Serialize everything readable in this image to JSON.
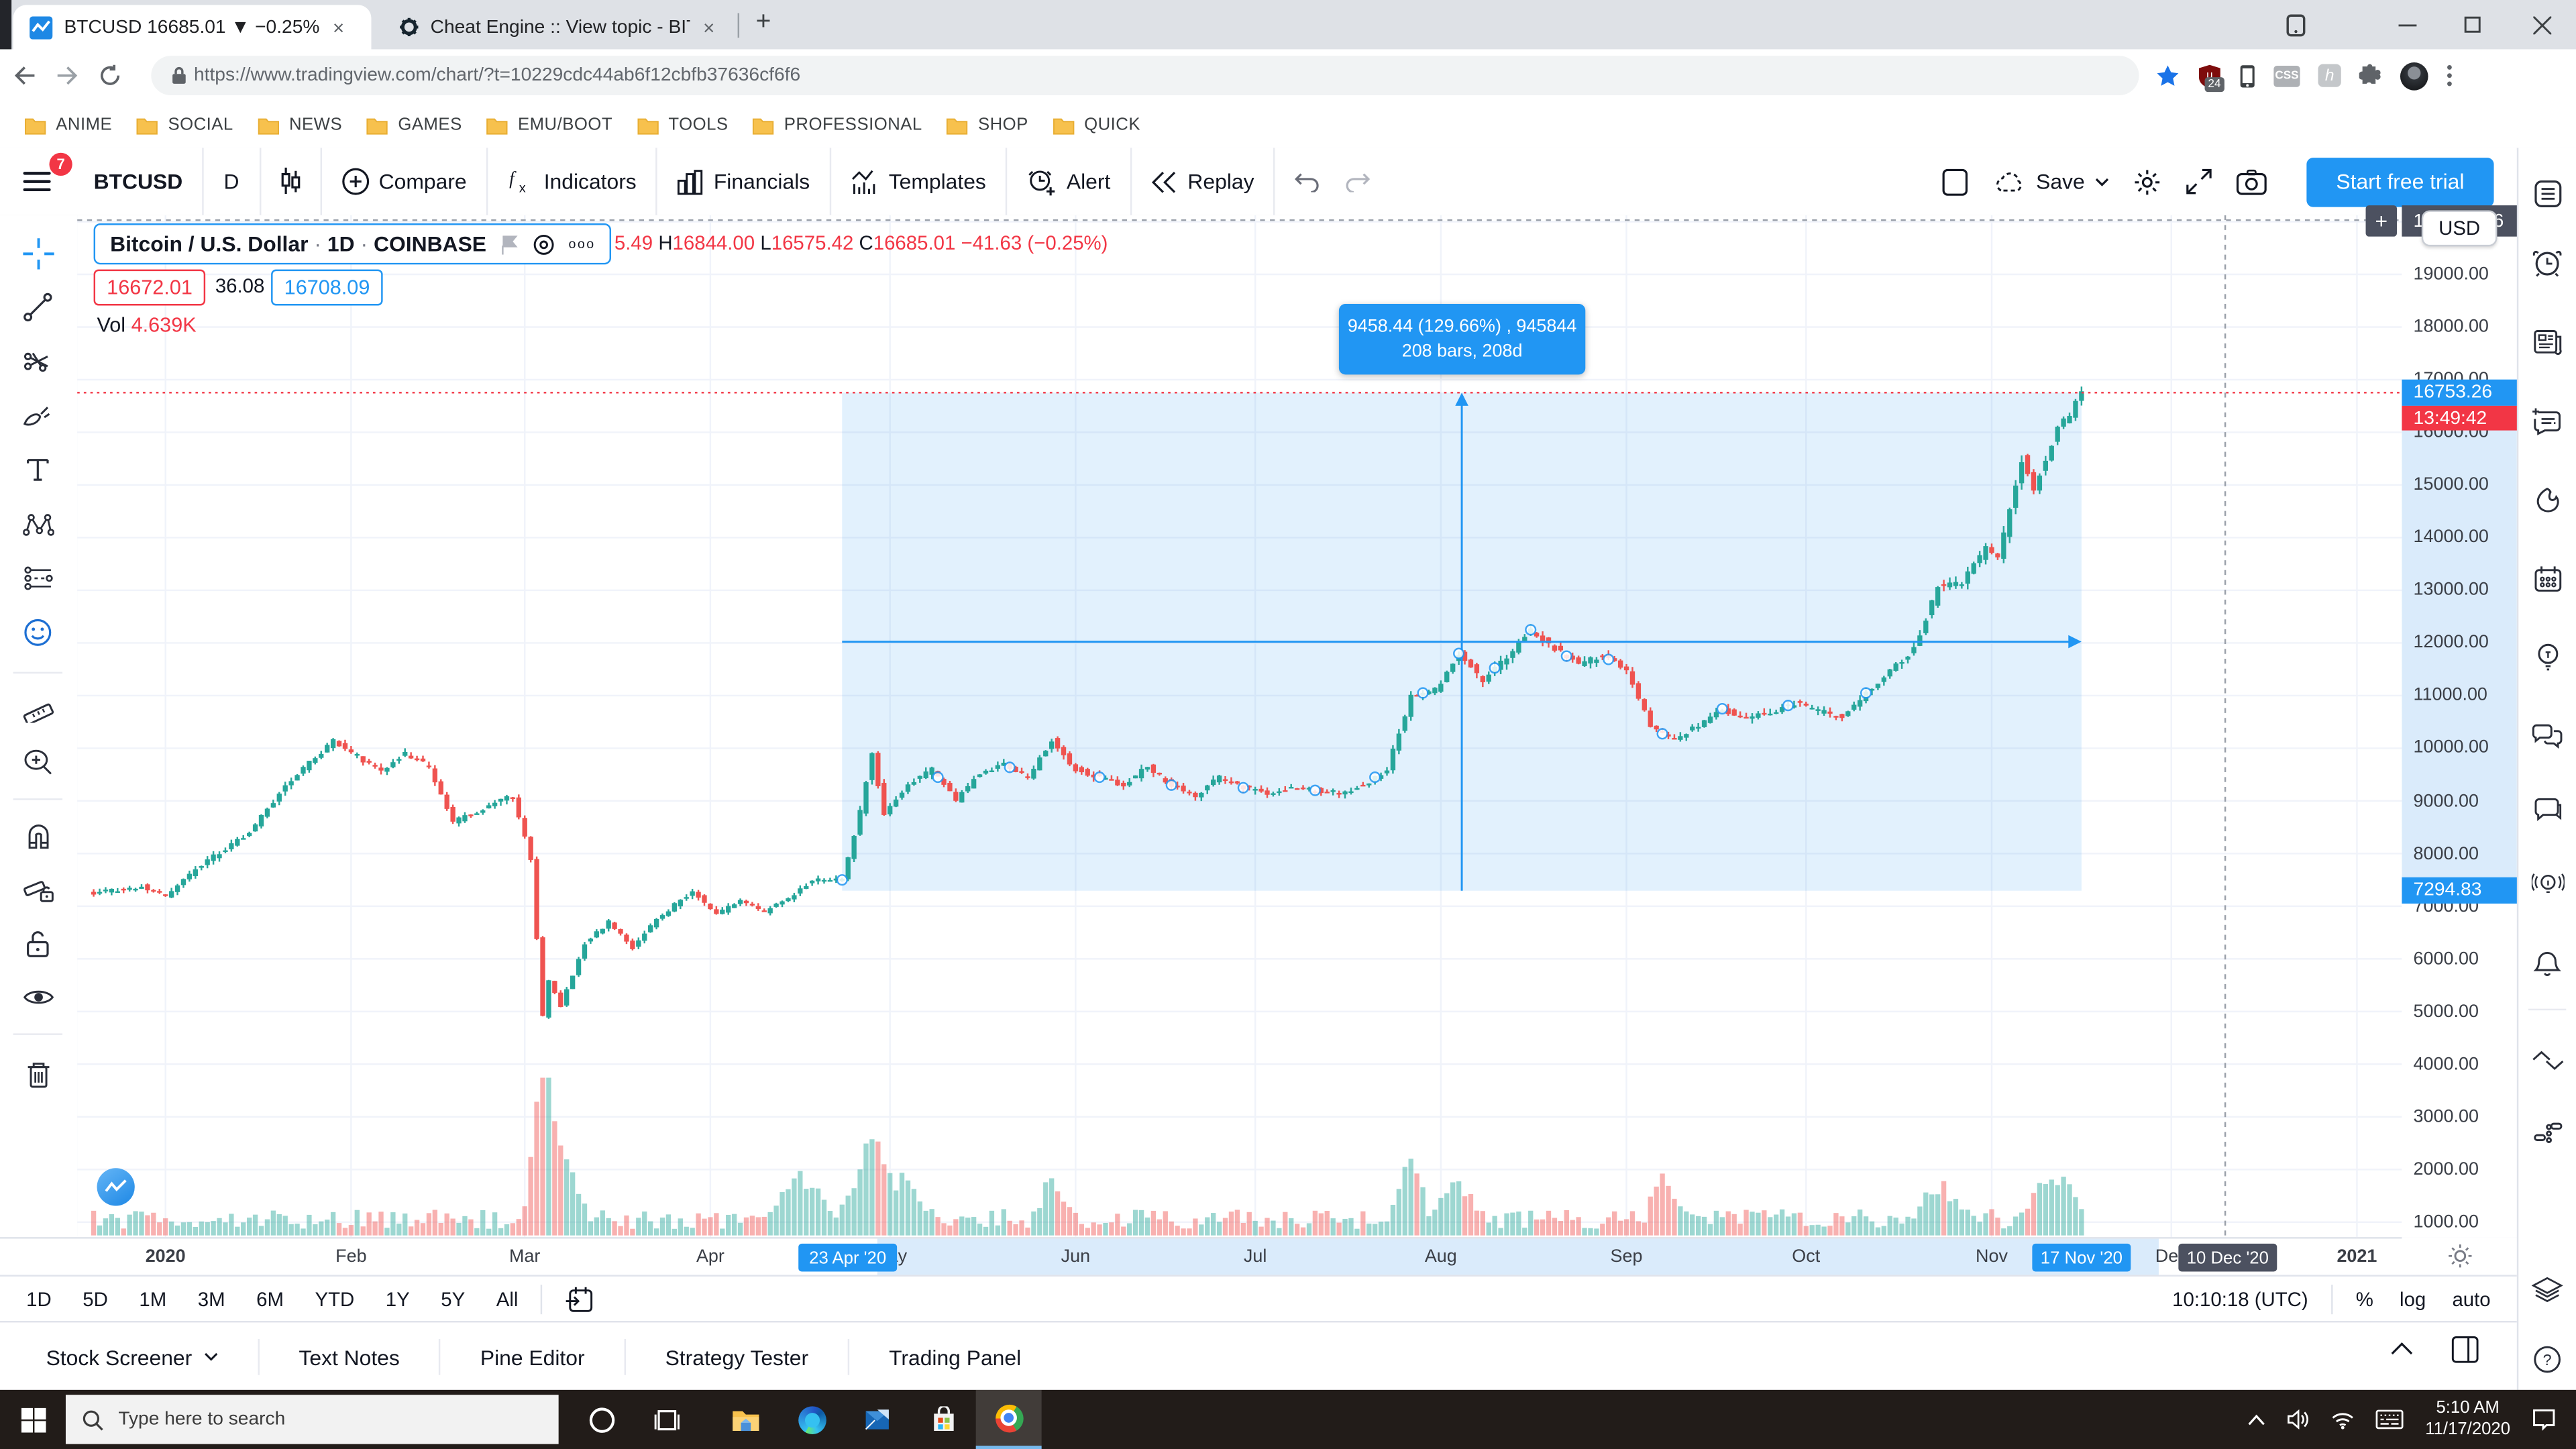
{
  "browser": {
    "tab1_title": "BTCUSD 16685.01 ▼ −0.25%",
    "tab2_title": "Cheat Engine :: View topic - BITC",
    "close_glyph": "×",
    "new_tab_glyph": "+",
    "url": "https://www.tradingview.com/chart/?t=10229cdc44ab6f12cbfb37636cf6f6",
    "shield_badge": "24",
    "ext_css_label": "CSS",
    "ext_h_label": "h",
    "bookmarks": [
      "ANIME",
      "SOCIAL",
      "NEWS",
      "GAMES",
      "EMU/BOOT",
      "TOOLS",
      "PROFESSIONAL",
      "SHOP",
      "QUICK"
    ]
  },
  "toolbar": {
    "menu_badge": "7",
    "symbol": "BTCUSD",
    "interval": "D",
    "compare": "Compare",
    "indicators": "Indicators",
    "financials": "Financials",
    "templates": "Templates",
    "alert": "Alert",
    "replay": "Replay",
    "save": "Save",
    "cta": "Start free trial"
  },
  "legend": {
    "title": "Bitcoin / U.S. Dollar",
    "sep": "·",
    "interval": "1D",
    "exchange": "COINBASE",
    "more_glyph": "ooo",
    "ohlc_visible": "5.49",
    "h_label": "H",
    "h": "16844.00",
    "l_label": "L",
    "l": "16575.42",
    "c_label": "C",
    "c": "16685.01",
    "change": "−41.63 (−0.25%)",
    "bid": "16672.01",
    "spread": "36.08",
    "ask": "16708.09",
    "vol_label": "Vol",
    "vol": "4.639K"
  },
  "measure": {
    "line1": "9458.44 (129.66%) , 945844",
    "line2": "208 bars, 208d"
  },
  "price_scale": {
    "current": "16753.26",
    "countdown": "13:49:42",
    "range_low": "7294.83",
    "crosshair_left": "19",
    "crosshair_right": "66",
    "plus_glyph": "+",
    "currency": "USD"
  },
  "time_scale": {
    "range_start": "23 Apr '20",
    "range_end": "17 Nov '20",
    "crosshair": "10 Dec '20"
  },
  "bottom": {
    "ranges": [
      "1D",
      "5D",
      "1M",
      "3M",
      "6M",
      "YTD",
      "1Y",
      "5Y",
      "All"
    ],
    "clock": "10:10:18 (UTC)",
    "modes": [
      "%",
      "log",
      "auto"
    ]
  },
  "panel": {
    "tabs": [
      "Stock Screener",
      "Text Notes",
      "Pine Editor",
      "Strategy Tester",
      "Trading Panel"
    ]
  },
  "taskbar": {
    "search_placeholder": "Type here to search",
    "time": "5:10 AM",
    "date": "11/17/2020"
  },
  "chart_data": {
    "type": "candlestick",
    "symbol": "BTCUSD",
    "exchange": "COINBASE",
    "interval": "1D",
    "ylim": [
      1000,
      20000
    ],
    "price_ticks": [
      "20000.00",
      "19000.00",
      "18000.00",
      "17000.00",
      "16000.00",
      "15000.00",
      "14000.00",
      "13000.00",
      "12000.00",
      "11000.00",
      "10000.00",
      "9000.00",
      "8000.00",
      "7000.00",
      "6000.00",
      "5000.00",
      "4000.00",
      "3000.00",
      "2000.00",
      "1000.00"
    ],
    "months": [
      {
        "label": "2020",
        "day": 12,
        "bold": true
      },
      {
        "label": "Feb",
        "day": 43,
        "bold": false
      },
      {
        "label": "Mar",
        "day": 72,
        "bold": false
      },
      {
        "label": "Apr",
        "day": 103,
        "bold": false
      },
      {
        "label": "May",
        "day": 133,
        "bold": false
      },
      {
        "label": "Jun",
        "day": 164,
        "bold": false
      },
      {
        "label": "Jul",
        "day": 194,
        "bold": false
      },
      {
        "label": "Aug",
        "day": 225,
        "bold": false
      },
      {
        "label": "Sep",
        "day": 256,
        "bold": false
      },
      {
        "label": "Oct",
        "day": 286,
        "bold": false
      },
      {
        "label": "Nov",
        "day": 317,
        "bold": false
      },
      {
        "label": "Dec",
        "day": 347,
        "bold": false
      },
      {
        "label": "2021",
        "day": 378,
        "bold": true
      }
    ],
    "anchors": [
      [
        0,
        7250
      ],
      [
        8,
        7380
      ],
      [
        12,
        7200
      ],
      [
        18,
        7800
      ],
      [
        26,
        8400
      ],
      [
        32,
        9300
      ],
      [
        40,
        10150
      ],
      [
        44,
        9850
      ],
      [
        48,
        9550
      ],
      [
        52,
        9900
      ],
      [
        56,
        9650
      ],
      [
        60,
        8600
      ],
      [
        64,
        8800
      ],
      [
        70,
        9100
      ],
      [
        73,
        7900
      ],
      [
        75,
        4900
      ],
      [
        76,
        5600
      ],
      [
        78,
        5100
      ],
      [
        82,
        6300
      ],
      [
        86,
        6700
      ],
      [
        90,
        6200
      ],
      [
        94,
        6750
      ],
      [
        100,
        7300
      ],
      [
        104,
        6850
      ],
      [
        108,
        7100
      ],
      [
        112,
        6900
      ],
      [
        116,
        7150
      ],
      [
        120,
        7500
      ],
      [
        125,
        7500
      ],
      [
        128,
        8800
      ],
      [
        130,
        9900
      ],
      [
        132,
        8750
      ],
      [
        136,
        9300
      ],
      [
        140,
        9600
      ],
      [
        144,
        9000
      ],
      [
        148,
        9550
      ],
      [
        152,
        9700
      ],
      [
        156,
        9450
      ],
      [
        160,
        10150
      ],
      [
        164,
        9600
      ],
      [
        168,
        9450
      ],
      [
        172,
        9300
      ],
      [
        176,
        9650
      ],
      [
        180,
        9300
      ],
      [
        184,
        9100
      ],
      [
        188,
        9450
      ],
      [
        192,
        9250
      ],
      [
        196,
        9150
      ],
      [
        200,
        9250
      ],
      [
        204,
        9200
      ],
      [
        208,
        9150
      ],
      [
        212,
        9300
      ],
      [
        216,
        9600
      ],
      [
        220,
        11000
      ],
      [
        224,
        11100
      ],
      [
        228,
        11800
      ],
      [
        232,
        11300
      ],
      [
        236,
        11750
      ],
      [
        240,
        12250
      ],
      [
        244,
        11900
      ],
      [
        248,
        11600
      ],
      [
        252,
        11750
      ],
      [
        256,
        11500
      ],
      [
        260,
        10400
      ],
      [
        264,
        10150
      ],
      [
        268,
        10450
      ],
      [
        272,
        10750
      ],
      [
        276,
        10550
      ],
      [
        280,
        10700
      ],
      [
        284,
        10850
      ],
      [
        288,
        10700
      ],
      [
        292,
        10600
      ],
      [
        296,
        11050
      ],
      [
        300,
        11450
      ],
      [
        304,
        11900
      ],
      [
        308,
        13050
      ],
      [
        312,
        13150
      ],
      [
        316,
        13800
      ],
      [
        318,
        13600
      ],
      [
        322,
        15500
      ],
      [
        324,
        14900
      ],
      [
        326,
        15500
      ],
      [
        328,
        16100
      ],
      [
        330,
        16300
      ],
      [
        332,
        16750
      ]
    ],
    "volume_spikes": [
      [
        75,
        80,
        2
      ],
      [
        78,
        40,
        3
      ],
      [
        118,
        25,
        4
      ],
      [
        130,
        48,
        3
      ],
      [
        136,
        22,
        3
      ],
      [
        160,
        26,
        2
      ],
      [
        220,
        40,
        2
      ],
      [
        228,
        20,
        3
      ],
      [
        262,
        25,
        2
      ],
      [
        308,
        20,
        3
      ],
      [
        326,
        22,
        3
      ],
      [
        330,
        15,
        2
      ]
    ],
    "markers_days": [
      125,
      141,
      153,
      168,
      180,
      192,
      204,
      214,
      222,
      228,
      234,
      240,
      246,
      253,
      262,
      272,
      283,
      296
    ],
    "measure_range": {
      "start_day": 125,
      "end_day": 332,
      "high": 16753.26,
      "low": 7294.83,
      "change": 9458.44,
      "change_pct": 129.66,
      "bars": 208
    },
    "current_price": 16753.26,
    "crosshair_day": 356,
    "colors": {
      "up": "#26a69a",
      "down": "#ef5350",
      "accent": "#2196f3",
      "current_line": "#f23645",
      "grid": "#f0f3fa",
      "crosshair": "#9aa0aa",
      "band": "rgba(33,150,243,0.13)"
    }
  }
}
